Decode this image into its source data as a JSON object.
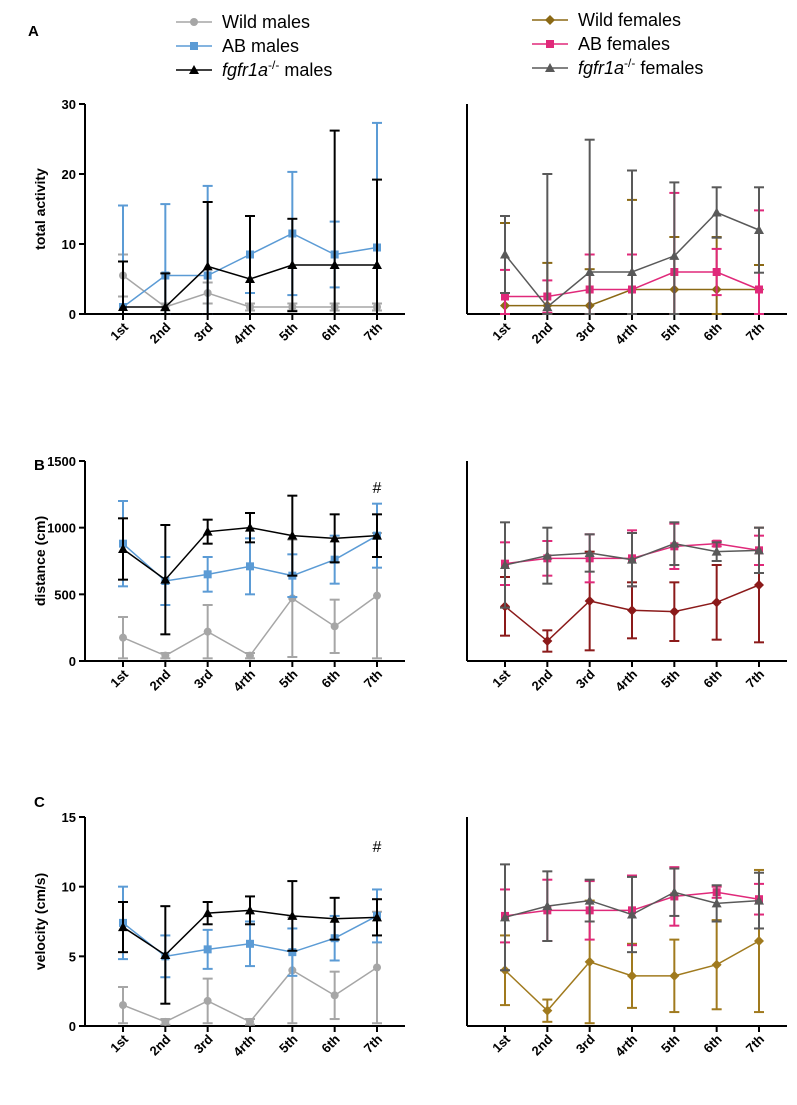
{
  "legend_left": [
    {
      "label": "Wild males",
      "italic_part": "",
      "color": "#a6a6a6",
      "marker": "circle"
    },
    {
      "label": "AB males",
      "italic_part": "",
      "color": "#5b9bd5",
      "marker": "square"
    },
    {
      "label": "fgfr1a-/- males",
      "italic_part": "fgfr1a",
      "sup": "-/-",
      "rest": " males",
      "color": "#000000",
      "marker": "triangle"
    }
  ],
  "legend_right": [
    {
      "label": "Wild females",
      "italic_part": "",
      "color": "#8b6914",
      "marker": "diamond"
    },
    {
      "label": "AB females",
      "italic_part": "",
      "color": "#e0297a",
      "marker": "square"
    },
    {
      "label": "fgfr1a-/- females",
      "italic_part": "fgfr1a",
      "sup": "-/-",
      "rest": " females",
      "color": "#595959",
      "marker": "triangle"
    }
  ],
  "chart_data": [
    {
      "panel": "A",
      "side": "left",
      "type": "line",
      "categories": [
        "1st",
        "2nd",
        "3rd",
        "4rth",
        "5th",
        "6th",
        "7th"
      ],
      "ylabel": "total activity",
      "ylim": [
        0,
        30
      ],
      "yticks": [
        0,
        10,
        20,
        30
      ],
      "series": [
        {
          "name": "Wild males",
          "color": "#a6a6a6",
          "marker": "circle",
          "values": [
            5.5,
            1,
            3,
            1,
            1,
            1,
            1
          ],
          "err": [
            3,
            0.5,
            1.5,
            0.5,
            0.5,
            0.5,
            0.5
          ]
        },
        {
          "name": "AB males",
          "color": "#5b9bd5",
          "marker": "square",
          "values": [
            1,
            5.5,
            5.5,
            8.5,
            11.5,
            8.5,
            9.5
          ],
          "err": [
            14.5,
            10.2,
            12.8,
            5.5,
            8.8,
            4.7,
            17.8
          ]
        },
        {
          "name": "fgfr1a-/- males",
          "color": "#000000",
          "marker": "triangle",
          "values": [
            1,
            1,
            6.8,
            5,
            7,
            7,
            7
          ],
          "err": [
            6.5,
            4.8,
            9.2,
            9,
            6.6,
            19.2,
            12.2
          ]
        }
      ]
    },
    {
      "panel": "A",
      "side": "right",
      "type": "line",
      "categories": [
        "1st",
        "2nd",
        "3rd",
        "4rth",
        "5th",
        "6th",
        "7th"
      ],
      "ylim": [
        0,
        30
      ],
      "yticks": [],
      "series": [
        {
          "name": "Wild females",
          "color": "#8b6914",
          "marker": "diamond",
          "values": [
            1.2,
            1.2,
            1.2,
            3.5,
            3.5,
            3.5,
            3.5
          ],
          "err": [
            11.8,
            6.1,
            5.2,
            12.8,
            7.5,
            7.5,
            3.5
          ]
        },
        {
          "name": "AB females",
          "color": "#e0297a",
          "marker": "square",
          "values": [
            2.5,
            2.5,
            3.5,
            3.5,
            6,
            6,
            3.5
          ],
          "err": [
            3.8,
            2.3,
            5,
            5,
            11.3,
            3.3,
            11.3
          ]
        },
        {
          "name": "fgfr1a-/- females",
          "color": "#595959",
          "marker": "triangle",
          "values": [
            8.5,
            1,
            6,
            6,
            8.3,
            14.5,
            12
          ],
          "err": [
            5.5,
            19,
            18.9,
            14.5,
            10.5,
            3.6,
            6.1
          ]
        }
      ]
    },
    {
      "panel": "B",
      "side": "left",
      "type": "line",
      "categories": [
        "1st",
        "2nd",
        "3rd",
        "4rth",
        "5th",
        "6th",
        "7th"
      ],
      "ylabel": "distance (cm)",
      "ylim": [
        0,
        1500
      ],
      "yticks": [
        0,
        500,
        1000,
        1500
      ],
      "annotation": {
        "text": "#",
        "category_index": 6,
        "value": 1260
      },
      "series": [
        {
          "name": "Wild males",
          "color": "#a6a6a6",
          "marker": "circle",
          "values": [
            175,
            40,
            220,
            40,
            470,
            260,
            490
          ],
          "err": [
            155,
            20,
            200,
            20,
            440,
            200,
            470
          ]
        },
        {
          "name": "AB males",
          "color": "#5b9bd5",
          "marker": "square",
          "values": [
            880,
            600,
            650,
            710,
            640,
            760,
            940
          ],
          "err": [
            320,
            180,
            130,
            210,
            160,
            180,
            240
          ]
        },
        {
          "name": "fgfr1a-/- males",
          "color": "#000000",
          "marker": "triangle",
          "values": [
            840,
            610,
            970,
            1000,
            940,
            920,
            940
          ],
          "err": [
            230,
            410,
            90,
            110,
            300,
            180,
            160
          ]
        }
      ]
    },
    {
      "panel": "B",
      "side": "right",
      "type": "line",
      "categories": [
        "1st",
        "2nd",
        "3rd",
        "4rth",
        "5th",
        "6th",
        "7th"
      ],
      "ylim": [
        0,
        1500
      ],
      "yticks": [],
      "series": [
        {
          "name": "Wild females",
          "color": "#8b1a1a",
          "marker": "diamond",
          "values": [
            410,
            150,
            450,
            380,
            370,
            440,
            570
          ],
          "err": [
            220,
            80,
            370,
            210,
            220,
            280,
            430
          ]
        },
        {
          "name": "AB females",
          "color": "#e0297a",
          "marker": "square",
          "values": [
            730,
            770,
            770,
            770,
            860,
            880,
            830
          ],
          "err": [
            160,
            130,
            180,
            210,
            170,
            20,
            110
          ]
        },
        {
          "name": "fgfr1a-/- females",
          "color": "#595959",
          "marker": "triangle",
          "values": [
            720,
            790,
            810,
            760,
            880,
            820,
            830
          ],
          "err": [
            320,
            210,
            140,
            200,
            160,
            70,
            170
          ]
        }
      ]
    },
    {
      "panel": "C",
      "side": "left",
      "type": "line",
      "categories": [
        "1st",
        "2nd",
        "3rd",
        "4rth",
        "5th",
        "6th",
        "7th"
      ],
      "ylabel": "velocity (cm/s)",
      "ylim": [
        0,
        15
      ],
      "yticks": [
        0,
        5,
        10,
        15
      ],
      "annotation": {
        "text": "#",
        "category_index": 6,
        "value": 12.5
      },
      "series": [
        {
          "name": "Wild males",
          "color": "#a6a6a6",
          "marker": "circle",
          "values": [
            1.5,
            0.3,
            1.8,
            0.3,
            4,
            2.2,
            4.2
          ],
          "err": [
            1.3,
            0.2,
            1.6,
            0.2,
            3.8,
            1.7,
            4
          ]
        },
        {
          "name": "AB males",
          "color": "#5b9bd5",
          "marker": "square",
          "values": [
            7.4,
            5,
            5.5,
            5.9,
            5.3,
            6.3,
            7.9
          ],
          "err": [
            2.6,
            1.5,
            1.4,
            1.6,
            1.7,
            1.6,
            1.9
          ]
        },
        {
          "name": "fgfr1a-/- males",
          "color": "#000000",
          "marker": "triangle",
          "values": [
            7.1,
            5.1,
            8.1,
            8.3,
            7.9,
            7.7,
            7.8
          ],
          "err": [
            1.8,
            3.5,
            0.8,
            1,
            2.5,
            1.5,
            1.3
          ]
        }
      ]
    },
    {
      "panel": "C",
      "side": "right",
      "type": "line",
      "categories": [
        "1st",
        "2nd",
        "3rd",
        "4rth",
        "5th",
        "6th",
        "7th"
      ],
      "ylim": [
        0,
        15
      ],
      "yticks": [],
      "series": [
        {
          "name": "Wild females",
          "color": "#a07a1e",
          "marker": "diamond",
          "values": [
            4,
            1.1,
            4.6,
            3.6,
            3.6,
            4.4,
            6.1
          ],
          "err": [
            2.5,
            0.8,
            4.4,
            2.3,
            2.6,
            3.2,
            5.1
          ]
        },
        {
          "name": "AB females",
          "color": "#e0297a",
          "marker": "square",
          "values": [
            7.9,
            8.3,
            8.3,
            8.3,
            9.3,
            9.6,
            9.1
          ],
          "err": [
            1.9,
            2.2,
            2.1,
            2.5,
            2.1,
            0.4,
            1.1
          ]
        },
        {
          "name": "fgfr1a-/- females",
          "color": "#595959",
          "marker": "triangle",
          "values": [
            7.8,
            8.6,
            9,
            8,
            9.6,
            8.8,
            9
          ],
          "err": [
            3.8,
            2.5,
            1.5,
            2.7,
            1.7,
            1.3,
            2
          ]
        }
      ]
    }
  ]
}
